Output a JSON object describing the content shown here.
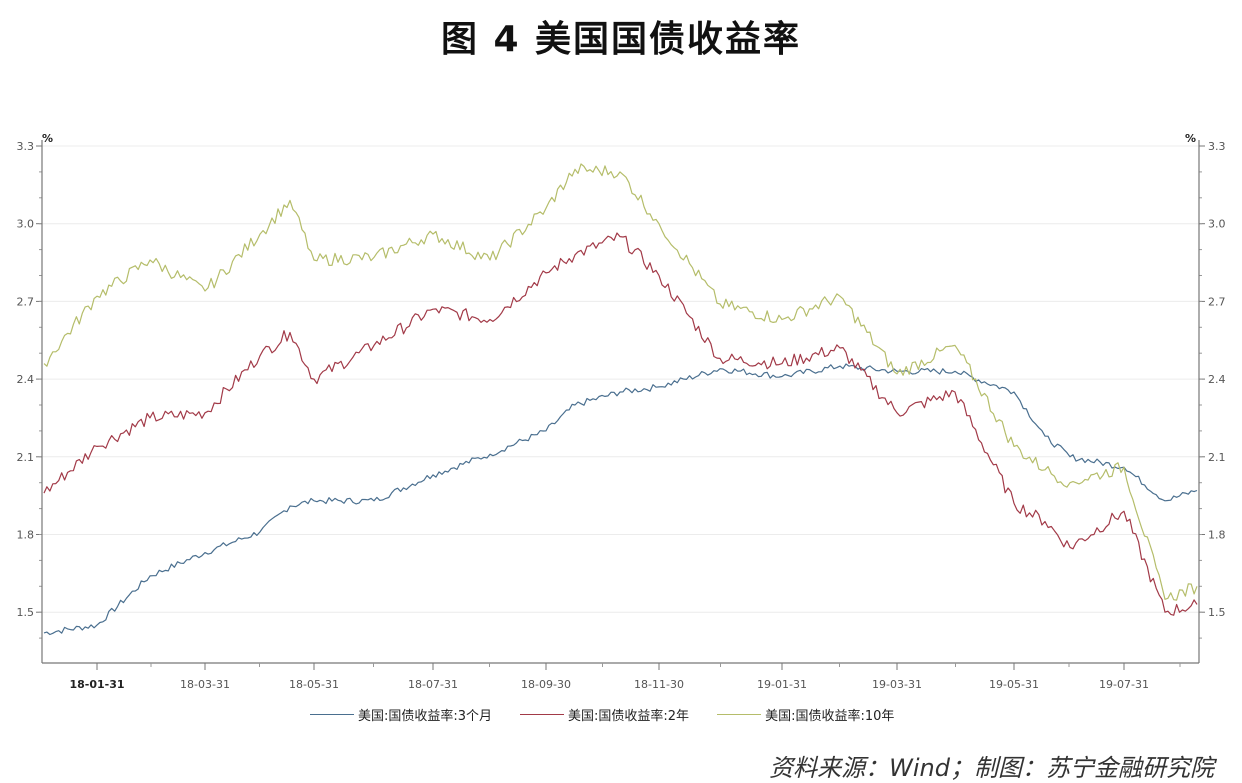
{
  "title": "图 4  美国国债收益率",
  "source_note": "资料来源：Wind；制图：苏宁金融研究院",
  "axes": {
    "left_unit": "%",
    "right_unit": "%",
    "y_ticks": [
      "3.3",
      "3.0",
      "2.7",
      "2.4",
      "2.1",
      "1.8",
      "1.5"
    ],
    "x_ticks": [
      "18-01-31",
      "18-03-31",
      "18-05-31",
      "18-07-31",
      "18-09-30",
      "18-11-30",
      "19-01-31",
      "19-03-31",
      "19-05-31",
      "19-07-31"
    ]
  },
  "legend": [
    {
      "label": "美国:国债收益率:3个月",
      "color": "#4a6f8f"
    },
    {
      "label": "美国:国债收益率:2年",
      "color": "#a23a48"
    },
    {
      "label": "美国:国债收益率:10年",
      "color": "#b5bd6a"
    }
  ],
  "chart_data": {
    "type": "line",
    "title": "图 4  美国国债收益率",
    "xlabel": "",
    "ylabel": "%",
    "ylim": [
      1.3,
      3.32
    ],
    "y_ticks": [
      1.5,
      1.8,
      2.1,
      2.4,
      2.7,
      3.0,
      3.3
    ],
    "grid": true,
    "dual_axis": true,
    "legend_position": "bottom",
    "x": [
      "18-01-02",
      "18-01-31",
      "18-02-28",
      "18-03-31",
      "18-04-30",
      "18-05-15",
      "18-05-31",
      "18-06-30",
      "18-07-31",
      "18-08-31",
      "18-09-30",
      "18-10-15",
      "18-11-08",
      "18-11-30",
      "18-12-31",
      "19-01-31",
      "19-02-28",
      "19-03-31",
      "19-04-30",
      "19-05-31",
      "19-06-15",
      "19-06-30",
      "19-07-31",
      "19-08-15",
      "19-08-28"
    ],
    "series": [
      {
        "name": "美国:国债收益率:3个月",
        "color": "#4a6f8f",
        "values": [
          1.42,
          1.45,
          1.64,
          1.73,
          1.81,
          1.91,
          1.93,
          1.93,
          2.03,
          2.11,
          2.2,
          2.3,
          2.35,
          2.37,
          2.44,
          2.41,
          2.45,
          2.43,
          2.43,
          2.35,
          2.18,
          2.1,
          2.06,
          1.93,
          1.97
        ]
      },
      {
        "name": "美国:国债收益率:2年",
        "color": "#a23a48",
        "values": [
          1.96,
          2.14,
          2.25,
          2.27,
          2.49,
          2.58,
          2.4,
          2.53,
          2.67,
          2.63,
          2.81,
          2.88,
          2.95,
          2.8,
          2.48,
          2.46,
          2.52,
          2.27,
          2.35,
          1.92,
          1.85,
          1.75,
          1.89,
          1.5,
          1.53
        ]
      },
      {
        "name": "美国:国债收益率:10年",
        "color": "#b5bd6a",
        "values": [
          2.46,
          2.72,
          2.86,
          2.74,
          2.96,
          3.09,
          2.86,
          2.87,
          2.96,
          2.86,
          3.06,
          3.21,
          3.2,
          3.0,
          2.69,
          2.63,
          2.72,
          2.42,
          2.53,
          2.14,
          2.05,
          2.0,
          2.06,
          1.55,
          1.6
        ]
      }
    ]
  }
}
